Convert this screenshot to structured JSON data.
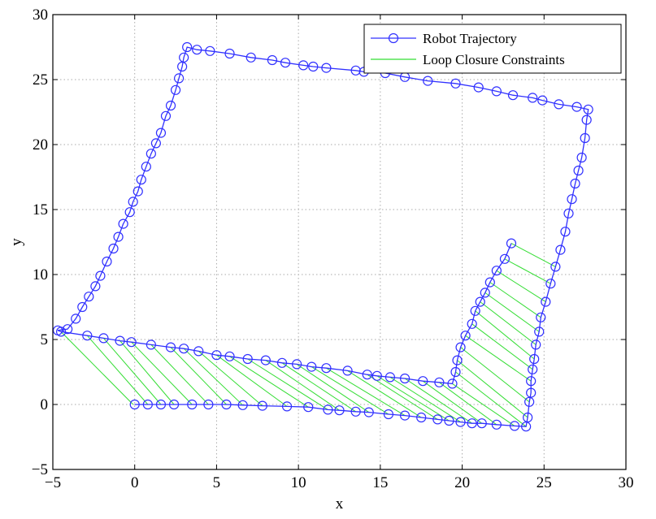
{
  "chart_data": {
    "type": "line",
    "title": "",
    "xlabel": "x",
    "ylabel": "y",
    "xlim": [
      -5,
      30
    ],
    "ylim": [
      -5,
      30
    ],
    "xticks": [
      -5,
      0,
      5,
      10,
      15,
      20,
      25,
      30
    ],
    "yticks": [
      -5,
      0,
      5,
      10,
      15,
      20,
      25,
      30
    ],
    "grid": true,
    "legend_position": "top-right",
    "colors": {
      "trajectory": "#3030ff",
      "constraints": "#33dd33",
      "grid": "#aaaaaa",
      "axes": "#000000"
    },
    "series": [
      {
        "name": "Robot Trajectory",
        "points": [
          [
            0,
            0
          ],
          [
            0.8,
            0
          ],
          [
            1.6,
            0
          ],
          [
            2.4,
            0
          ],
          [
            3.5,
            0
          ],
          [
            4.5,
            0
          ],
          [
            5.6,
            0
          ],
          [
            6.6,
            -0.05
          ],
          [
            7.8,
            -0.1
          ],
          [
            9.3,
            -0.15
          ],
          [
            10.6,
            -0.2
          ],
          [
            11.8,
            -0.4
          ],
          [
            12.5,
            -0.45
          ],
          [
            13.5,
            -0.55
          ],
          [
            14.3,
            -0.6
          ],
          [
            15.5,
            -0.75
          ],
          [
            16.5,
            -0.85
          ],
          [
            17.5,
            -1.0
          ],
          [
            18.5,
            -1.15
          ],
          [
            19.2,
            -1.25
          ],
          [
            19.9,
            -1.35
          ],
          [
            20.6,
            -1.45
          ],
          [
            21.2,
            -1.45
          ],
          [
            22.1,
            -1.55
          ],
          [
            23.2,
            -1.65
          ],
          [
            23.9,
            -1.7
          ],
          [
            24.0,
            -1.0
          ],
          [
            24.1,
            0.2
          ],
          [
            24.2,
            0.9
          ],
          [
            24.2,
            1.8
          ],
          [
            24.3,
            2.7
          ],
          [
            24.4,
            3.5
          ],
          [
            24.5,
            4.6
          ],
          [
            24.7,
            5.6
          ],
          [
            24.8,
            6.7
          ],
          [
            25.1,
            7.9
          ],
          [
            25.4,
            9.3
          ],
          [
            25.7,
            10.6
          ],
          [
            26.0,
            11.9
          ],
          [
            26.3,
            13.3
          ],
          [
            26.5,
            14.7
          ],
          [
            26.7,
            15.8
          ],
          [
            26.9,
            17.0
          ],
          [
            27.1,
            18.0
          ],
          [
            27.3,
            19.0
          ],
          [
            27.5,
            20.5
          ],
          [
            27.6,
            21.9
          ],
          [
            27.7,
            22.7
          ],
          [
            27.0,
            22.9
          ],
          [
            25.9,
            23.1
          ],
          [
            24.9,
            23.4
          ],
          [
            24.3,
            23.6
          ],
          [
            23.1,
            23.8
          ],
          [
            22.1,
            24.1
          ],
          [
            21.0,
            24.4
          ],
          [
            19.6,
            24.7
          ],
          [
            17.9,
            24.9
          ],
          [
            16.5,
            25.2
          ],
          [
            15.3,
            25.5
          ],
          [
            14.0,
            25.6
          ],
          [
            13.5,
            25.7
          ],
          [
            11.7,
            25.9
          ],
          [
            10.9,
            26.0
          ],
          [
            10.3,
            26.1
          ],
          [
            9.2,
            26.3
          ],
          [
            8.4,
            26.5
          ],
          [
            7.1,
            26.7
          ],
          [
            5.8,
            27.0
          ],
          [
            4.6,
            27.2
          ],
          [
            3.8,
            27.3
          ],
          [
            3.2,
            27.5
          ],
          [
            3.0,
            26.7
          ],
          [
            2.9,
            26.0
          ],
          [
            2.7,
            25.1
          ],
          [
            2.5,
            24.2
          ],
          [
            2.2,
            23.0
          ],
          [
            1.9,
            22.2
          ],
          [
            1.6,
            20.9
          ],
          [
            1.3,
            20.1
          ],
          [
            1.0,
            19.3
          ],
          [
            0.7,
            18.3
          ],
          [
            0.4,
            17.3
          ],
          [
            0.2,
            16.4
          ],
          [
            -0.1,
            15.6
          ],
          [
            -0.3,
            14.8
          ],
          [
            -0.7,
            13.9
          ],
          [
            -1.0,
            12.9
          ],
          [
            -1.3,
            12.0
          ],
          [
            -1.7,
            11.0
          ],
          [
            -2.1,
            9.9
          ],
          [
            -2.4,
            9.1
          ],
          [
            -2.8,
            8.3
          ],
          [
            -3.2,
            7.5
          ],
          [
            -3.6,
            6.6
          ],
          [
            -4.1,
            5.8
          ],
          [
            -4.7,
            5.7
          ],
          [
            -4.5,
            5.6
          ],
          [
            -2.9,
            5.3
          ],
          [
            -1.9,
            5.1
          ],
          [
            -0.9,
            4.9
          ],
          [
            -0.2,
            4.8
          ],
          [
            1.0,
            4.6
          ],
          [
            2.2,
            4.4
          ],
          [
            3.0,
            4.3
          ],
          [
            3.9,
            4.1
          ],
          [
            5.0,
            3.8
          ],
          [
            5.8,
            3.7
          ],
          [
            6.9,
            3.5
          ],
          [
            8.0,
            3.4
          ],
          [
            9.0,
            3.2
          ],
          [
            9.9,
            3.1
          ],
          [
            10.8,
            2.9
          ],
          [
            11.7,
            2.8
          ],
          [
            13.0,
            2.6
          ],
          [
            14.2,
            2.3
          ],
          [
            14.8,
            2.2
          ],
          [
            15.6,
            2.1
          ],
          [
            16.5,
            2.0
          ],
          [
            17.6,
            1.8
          ],
          [
            18.6,
            1.7
          ],
          [
            19.4,
            1.6
          ],
          [
            19.6,
            2.5
          ],
          [
            19.7,
            3.4
          ],
          [
            19.9,
            4.4
          ],
          [
            20.2,
            5.3
          ],
          [
            20.6,
            6.2
          ],
          [
            20.8,
            7.2
          ],
          [
            21.1,
            7.9
          ],
          [
            21.4,
            8.6
          ],
          [
            21.7,
            9.4
          ],
          [
            22.1,
            10.3
          ],
          [
            22.6,
            11.2
          ],
          [
            23.0,
            12.4
          ]
        ]
      },
      {
        "name": "Loop Closure Constraints",
        "note": "",
        "pairs": [
          [
            [
              -4.5,
              5.6
            ],
            [
              -0.1,
              0
            ]
          ],
          [
            [
              -2.9,
              5.3
            ],
            [
              0.8,
              0
            ]
          ],
          [
            [
              -1.9,
              5.1
            ],
            [
              1.6,
              0
            ]
          ],
          [
            [
              -0.9,
              4.9
            ],
            [
              2.4,
              0
            ]
          ],
          [
            [
              -0.2,
              4.8
            ],
            [
              3.5,
              0
            ]
          ],
          [
            [
              1.0,
              4.6
            ],
            [
              4.5,
              0
            ]
          ],
          [
            [
              2.2,
              4.4
            ],
            [
              5.6,
              0
            ]
          ],
          [
            [
              3.0,
              4.3
            ],
            [
              6.6,
              -0.05
            ]
          ],
          [
            [
              3.9,
              4.1
            ],
            [
              7.8,
              -0.1
            ]
          ],
          [
            [
              5.0,
              3.8
            ],
            [
              9.3,
              -0.15
            ]
          ],
          [
            [
              5.8,
              3.7
            ],
            [
              10.6,
              -0.2
            ]
          ],
          [
            [
              6.9,
              3.5
            ],
            [
              11.8,
              -0.4
            ]
          ],
          [
            [
              8.0,
              3.4
            ],
            [
              12.5,
              -0.45
            ]
          ],
          [
            [
              9.0,
              3.2
            ],
            [
              13.5,
              -0.55
            ]
          ],
          [
            [
              9.9,
              3.1
            ],
            [
              14.3,
              -0.6
            ]
          ],
          [
            [
              10.8,
              2.9
            ],
            [
              15.5,
              -0.75
            ]
          ],
          [
            [
              11.7,
              2.8
            ],
            [
              16.5,
              -0.85
            ]
          ],
          [
            [
              13.0,
              2.6
            ],
            [
              17.5,
              -1.0
            ]
          ],
          [
            [
              14.2,
              2.3
            ],
            [
              18.5,
              -1.15
            ]
          ],
          [
            [
              14.8,
              2.2
            ],
            [
              19.2,
              -1.25
            ]
          ],
          [
            [
              15.6,
              2.1
            ],
            [
              19.9,
              -1.35
            ]
          ],
          [
            [
              16.5,
              2.0
            ],
            [
              20.6,
              -1.45
            ]
          ],
          [
            [
              17.6,
              1.8
            ],
            [
              21.2,
              -1.45
            ]
          ],
          [
            [
              18.6,
              1.7
            ],
            [
              22.1,
              -1.55
            ]
          ],
          [
            [
              19.4,
              1.6
            ],
            [
              23.2,
              -1.65
            ]
          ],
          [
            [
              19.6,
              2.5
            ],
            [
              23.9,
              -1.7
            ]
          ],
          [
            [
              19.7,
              3.4
            ],
            [
              24.0,
              -1.0
            ]
          ],
          [
            [
              19.9,
              4.4
            ],
            [
              24.1,
              0.2
            ]
          ],
          [
            [
              20.2,
              5.3
            ],
            [
              24.2,
              1.8
            ]
          ],
          [
            [
              20.6,
              6.2
            ],
            [
              24.3,
              2.7
            ]
          ],
          [
            [
              20.8,
              7.2
            ],
            [
              24.4,
              3.5
            ]
          ],
          [
            [
              21.1,
              7.9
            ],
            [
              24.5,
              4.6
            ]
          ],
          [
            [
              21.4,
              8.6
            ],
            [
              24.7,
              5.6
            ]
          ],
          [
            [
              21.7,
              9.4
            ],
            [
              24.8,
              6.7
            ]
          ],
          [
            [
              22.1,
              10.3
            ],
            [
              25.1,
              7.9
            ]
          ],
          [
            [
              22.6,
              11.2
            ],
            [
              25.4,
              9.3
            ]
          ],
          [
            [
              23.0,
              12.4
            ],
            [
              25.7,
              10.6
            ]
          ]
        ]
      }
    ]
  }
}
